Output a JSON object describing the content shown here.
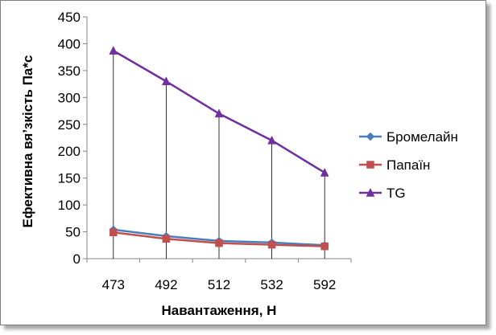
{
  "chart_data": {
    "type": "line",
    "categories": [
      "473",
      "492",
      "512",
      "532",
      "592"
    ],
    "xlabel": "Навантаження,  Н",
    "ylabel": "Ефективна вя’зкість Па*с",
    "ylim": [
      0,
      450
    ],
    "yticks": [
      0,
      50,
      100,
      150,
      200,
      250,
      300,
      350,
      400,
      450
    ],
    "drop_lines": true,
    "legend_position": "right",
    "series": [
      {
        "name": "Бромелайн",
        "values": [
          54,
          42,
          33,
          30,
          25
        ],
        "color": "#4a7ebb",
        "marker": "diamond"
      },
      {
        "name": "Папаїн",
        "values": [
          49,
          37,
          29,
          26,
          23
        ],
        "color": "#c0504d",
        "marker": "square"
      },
      {
        "name": "TG",
        "values": [
          387,
          330,
          270,
          220,
          160
        ],
        "color": "#7030a0",
        "marker": "triangle"
      }
    ]
  }
}
